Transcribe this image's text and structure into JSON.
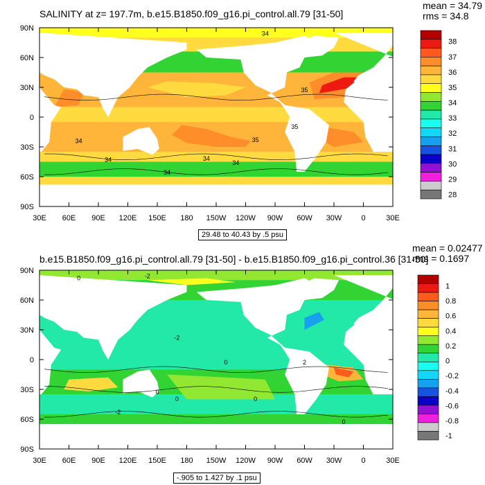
{
  "chart_data": [
    {
      "type": "heatmap",
      "title": "SALINITY at z= 197.7m, b.e15.B1850.f09_g16.pi_control.all.79 [31-50]",
      "mean_label": "mean = 34.79",
      "rms_label": "rms = 34.8",
      "range_label": "29.48 to 40.43 by .5 psu",
      "x_ticks": [
        "30E",
        "60E",
        "90E",
        "120E",
        "150E",
        "180",
        "150W",
        "120W",
        "90W",
        "60W",
        "30W",
        "0",
        "30E"
      ],
      "y_ticks": [
        "90N",
        "60N",
        "30N",
        "0",
        "30S",
        "60S",
        "90S"
      ],
      "colorbar_levels": [
        "38",
        "37",
        "36",
        "35",
        "34",
        "33",
        "32",
        "31",
        "30",
        "29",
        "28"
      ],
      "colorbar_colors": [
        "#b30000",
        "#ee1a11",
        "#ff5a1e",
        "#ff8d2a",
        "#ffb43a",
        "#ffdb40",
        "#ffff20",
        "#92e830",
        "#32d434",
        "#22e8a8",
        "#18fff0",
        "#15d6f6",
        "#16a0ee",
        "#1654df",
        "#0b00c8",
        "#9510d5",
        "#ee22dc",
        "#cccccc",
        "#777777"
      ],
      "contour_labels": [
        "34",
        "35",
        "35",
        "35",
        "34",
        "34",
        "34",
        "34",
        "34"
      ]
    },
    {
      "type": "heatmap",
      "title": "b.e15.B1850.f09_g16.pi_control.all.79 [31-50] - b.e15.B1850.f09_g16.pi_control.36 [31-50]",
      "mean_label": "mean = 0.02477",
      "rms_label": "rms = 0.1697",
      "range_label": "-.905 to 1.427 by .1 psu",
      "x_ticks": [
        "30E",
        "60E",
        "90E",
        "120E",
        "150E",
        "180",
        "150W",
        "120W",
        "90W",
        "60W",
        "30W",
        "0",
        "30E"
      ],
      "y_ticks": [
        "90N",
        "60N",
        "30N",
        "0",
        "30S",
        "60S",
        "90S"
      ],
      "colorbar_levels": [
        "1",
        "0.8",
        "0.6",
        "0.4",
        "0.2",
        "0",
        "-0.2",
        "-0.4",
        "-0.6",
        "-0.8",
        "-1"
      ],
      "colorbar_colors": [
        "#b30000",
        "#ee1a11",
        "#ff5a1e",
        "#ff8d2a",
        "#ffb43a",
        "#ffdb40",
        "#ffff20",
        "#92e830",
        "#32d434",
        "#22e8a8",
        "#18fff0",
        "#15d6f6",
        "#16a0ee",
        "#1654df",
        "#0b00c8",
        "#9510d5",
        "#ee22dc",
        "#cccccc",
        "#777777"
      ],
      "contour_labels": [
        "0",
        "-2",
        "-2",
        "0",
        "0",
        "2",
        "0",
        "0",
        "-2",
        "0"
      ]
    }
  ]
}
